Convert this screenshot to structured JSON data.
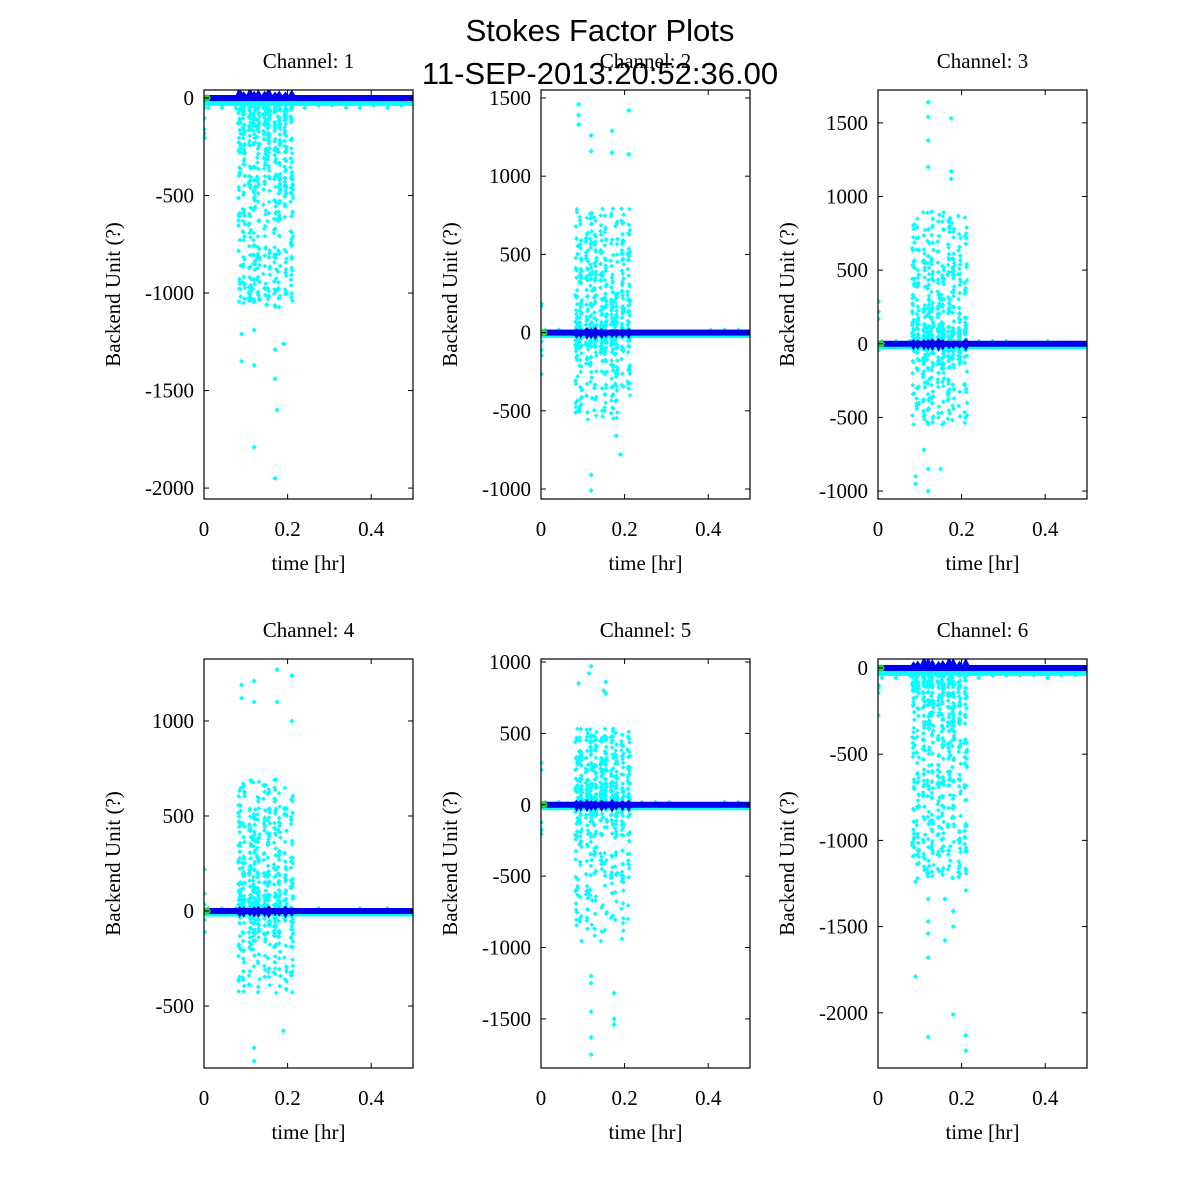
{
  "figure": {
    "title": "Stokes Factor Plots",
    "subtitle": "11-SEP-2013:20:52:36.00"
  },
  "colors": {
    "scatter": "#00ffff",
    "mean_line": "#0000ee",
    "start_marker": "#22dd22",
    "axes": "#000000"
  },
  "chart_data": [
    {
      "type": "scatter",
      "title": "Channel: 1",
      "xlabel": "time [hr]",
      "ylabel": "Backend Unit (?)",
      "xlim": [
        0,
        0.5
      ],
      "ylim": [
        -2056,
        41
      ],
      "xticks": [
        0,
        0.2,
        0.4
      ],
      "xtick_labels": [
        "0",
        "0.2",
        "0.4"
      ],
      "yticks": [
        0,
        -500,
        -1000,
        -1500,
        -2000
      ],
      "ytick_labels": [
        "0",
        "-500",
        "-1000",
        "-1500",
        "-2000"
      ],
      "baseline": 0,
      "burst_range_hr": [
        0.08,
        0.22
      ],
      "burst_y_range": [
        -1960,
        30
      ],
      "burst_direction": "negative",
      "outliers": [
        [
          0.09,
          -1350
        ],
        [
          0.12,
          -1790
        ],
        [
          0.17,
          -1950
        ],
        [
          0.175,
          -1600
        ],
        [
          0.17,
          -1440
        ],
        [
          0.12,
          -1370
        ],
        [
          0.19,
          -1260
        ],
        [
          0.09,
          -1210
        ],
        [
          0.12,
          -1190
        ],
        [
          0.17,
          -1290
        ],
        [
          0.15,
          -1060
        ]
      ]
    },
    {
      "type": "scatter",
      "title": "Channel: 2",
      "xlabel": "time [hr]",
      "ylabel": "Backend Unit (?)",
      "xlim": [
        0,
        0.5
      ],
      "ylim": [
        -1064,
        1551
      ],
      "xticks": [
        0,
        0.2,
        0.4
      ],
      "xtick_labels": [
        "0",
        "0.2",
        "0.4"
      ],
      "yticks": [
        1500,
        1000,
        500,
        0,
        -500,
        -1000
      ],
      "ytick_labels": [
        "1500",
        "1000",
        "500",
        "0",
        "-500",
        "-1000"
      ],
      "baseline": 0,
      "burst_range_hr": [
        0.08,
        0.22
      ],
      "burst_y_range": [
        -1010,
        1460
      ],
      "burst_direction": "both",
      "outliers": [
        [
          0.09,
          1460
        ],
        [
          0.09,
          1390
        ],
        [
          0.09,
          1330
        ],
        [
          0.21,
          1420
        ],
        [
          0.17,
          1290
        ],
        [
          0.12,
          1260
        ],
        [
          0.12,
          1160
        ],
        [
          0.17,
          1150
        ],
        [
          0.21,
          1140
        ],
        [
          0.12,
          -910
        ],
        [
          0.12,
          -1010
        ],
        [
          0.19,
          -780
        ],
        [
          0.18,
          -660
        ]
      ]
    },
    {
      "type": "scatter",
      "title": "Channel: 3",
      "xlabel": "time [hr]",
      "ylabel": "Backend Unit (?)",
      "xlim": [
        0,
        0.5
      ],
      "ylim": [
        -1054,
        1723
      ],
      "xticks": [
        0,
        0.2,
        0.4
      ],
      "xtick_labels": [
        "0",
        "0.2",
        "0.4"
      ],
      "yticks": [
        1500,
        1000,
        500,
        0,
        -500,
        -1000
      ],
      "ytick_labels": [
        "1500",
        "1000",
        "500",
        "0",
        "-500",
        "-1000"
      ],
      "baseline": 0,
      "burst_range_hr": [
        0.08,
        0.22
      ],
      "burst_y_range": [
        -1000,
        1640
      ],
      "burst_direction": "both",
      "outliers": [
        [
          0.12,
          1640
        ],
        [
          0.12,
          1540
        ],
        [
          0.175,
          1530
        ],
        [
          0.12,
          1380
        ],
        [
          0.12,
          1200
        ],
        [
          0.175,
          1170
        ],
        [
          0.175,
          1120
        ],
        [
          0.12,
          -1000
        ],
        [
          0.09,
          -950
        ],
        [
          0.09,
          -900
        ],
        [
          0.15,
          -850
        ],
        [
          0.12,
          -850
        ],
        [
          0.11,
          -720
        ]
      ]
    },
    {
      "type": "scatter",
      "title": "Channel: 4",
      "xlabel": "time [hr]",
      "ylabel": "Backend Unit (?)",
      "xlim": [
        0,
        0.5
      ],
      "ylim": [
        -826,
        1326
      ],
      "xticks": [
        0,
        0.2,
        0.4
      ],
      "xtick_labels": [
        "0",
        "0.2",
        "0.4"
      ],
      "yticks": [
        1000,
        500,
        0,
        -500
      ],
      "ytick_labels": [
        "1000",
        "500",
        "0",
        "-500"
      ],
      "baseline": 0,
      "burst_range_hr": [
        0.08,
        0.22
      ],
      "burst_y_range": [
        -800,
        1270
      ],
      "burst_direction": "both",
      "outliers": [
        [
          0.175,
          1270
        ],
        [
          0.21,
          1240
        ],
        [
          0.12,
          1210
        ],
        [
          0.09,
          1190
        ],
        [
          0.09,
          1120
        ],
        [
          0.12,
          1100
        ],
        [
          0.175,
          1100
        ],
        [
          0.21,
          1000
        ],
        [
          0.12,
          -720
        ],
        [
          0.12,
          -790
        ],
        [
          0.19,
          -630
        ]
      ]
    },
    {
      "type": "scatter",
      "title": "Channel: 5",
      "xlabel": "time [hr]",
      "ylabel": "Backend Unit (?)",
      "xlim": [
        0,
        0.5
      ],
      "ylim": [
        -1844,
        1021
      ],
      "xticks": [
        0,
        0.2,
        0.4
      ],
      "xtick_labels": [
        "0",
        "0.2",
        "0.4"
      ],
      "yticks": [
        1000,
        500,
        0,
        -500,
        -1000,
        -1500
      ],
      "ytick_labels": [
        "1000",
        "500",
        "0",
        "-500",
        "-1000",
        "-1500"
      ],
      "baseline": 0,
      "burst_range_hr": [
        0.08,
        0.22
      ],
      "burst_y_range": [
        -1750,
        970
      ],
      "burst_direction": "both",
      "outliers": [
        [
          0.12,
          970
        ],
        [
          0.115,
          920
        ],
        [
          0.09,
          850
        ],
        [
          0.155,
          860
        ],
        [
          0.15,
          800
        ],
        [
          0.155,
          780
        ],
        [
          0.12,
          -1750
        ],
        [
          0.12,
          -1630
        ],
        [
          0.12,
          -1450
        ],
        [
          0.175,
          -1540
        ],
        [
          0.175,
          -1500
        ],
        [
          0.175,
          -1320
        ],
        [
          0.12,
          -1250
        ],
        [
          0.12,
          -1200
        ]
      ]
    },
    {
      "type": "scatter",
      "title": "Channel: 6",
      "xlabel": "time [hr]",
      "ylabel": "Backend Unit (?)",
      "xlim": [
        0,
        0.5
      ],
      "ylim": [
        -2320,
        52
      ],
      "xticks": [
        0,
        0.2,
        0.4
      ],
      "xtick_labels": [
        "0",
        "0.2",
        "0.4"
      ],
      "yticks": [
        0,
        -500,
        -1000,
        -1500,
        -2000
      ],
      "ytick_labels": [
        "0",
        "-500",
        "-1000",
        "-1500",
        "-2000"
      ],
      "baseline": 0,
      "burst_range_hr": [
        0.08,
        0.22
      ],
      "burst_y_range": [
        -2220,
        40
      ],
      "burst_direction": "negative",
      "outliers": [
        [
          0.21,
          -2220
        ],
        [
          0.12,
          -2140
        ],
        [
          0.21,
          -2130
        ],
        [
          0.18,
          -2010
        ],
        [
          0.09,
          -1790
        ],
        [
          0.12,
          -1680
        ],
        [
          0.16,
          -1580
        ],
        [
          0.18,
          -1500
        ],
        [
          0.12,
          -1540
        ],
        [
          0.12,
          -1470
        ],
        [
          0.18,
          -1410
        ],
        [
          0.12,
          -1340
        ],
        [
          0.16,
          -1340
        ],
        [
          0.21,
          -1290
        ],
        [
          0.09,
          -1240
        ]
      ]
    }
  ]
}
